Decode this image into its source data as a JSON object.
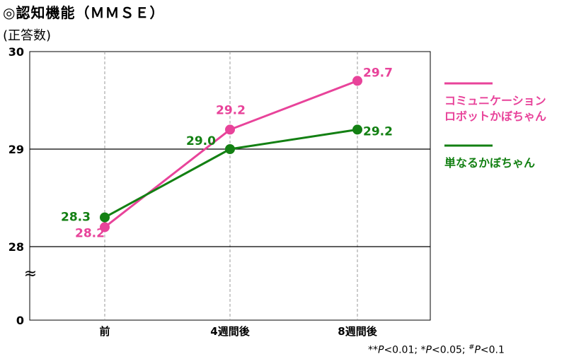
{
  "title": "◎認知機能（ＭＭＳＥ）",
  "unit_label": "(正答数)",
  "footnote": "**P<0.01; *P<0.05; #P<0.1",
  "break_symbol": "≈",
  "colors": {
    "pink": "#e8439a",
    "green": "#138013"
  },
  "chart_data": {
    "type": "line",
    "categories": [
      "前",
      "4週間後",
      "8週間後"
    ],
    "series": [
      {
        "name": "コミュニケーション\nロボットかぼちゃん",
        "values": [
          28.2,
          29.2,
          29.7
        ],
        "color": "#e8439a"
      },
      {
        "name": "単なるかぼちゃん",
        "values": [
          28.3,
          29.0,
          29.2
        ],
        "color": "#138013"
      }
    ],
    "y_ticks": [
      "0",
      "28",
      "29",
      "30"
    ],
    "ylim": [
      28,
      30
    ],
    "axis_break": true,
    "legend_position": "right",
    "data_labels": true
  }
}
